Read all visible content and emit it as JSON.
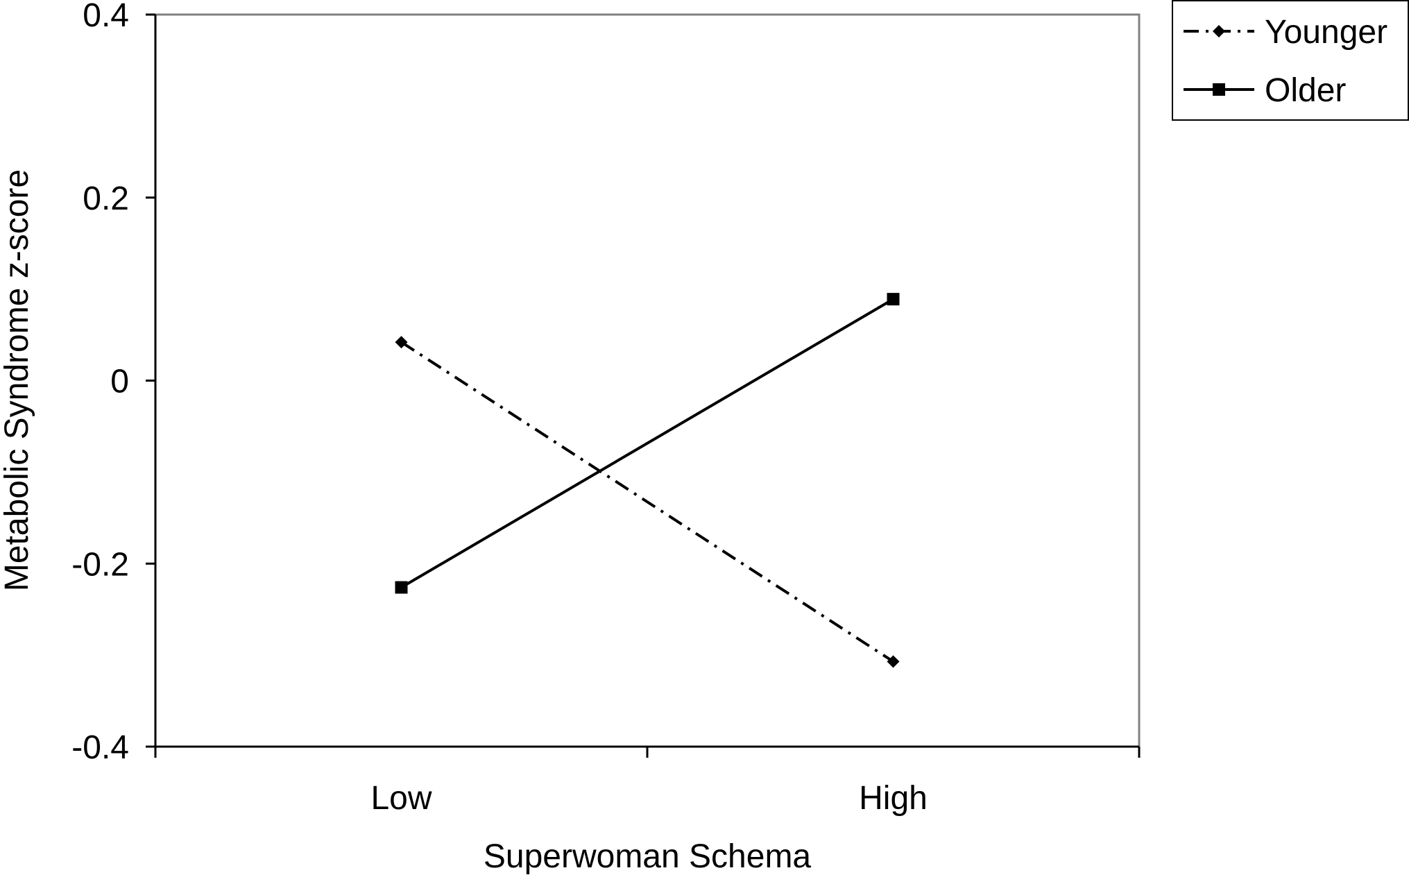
{
  "chart_data": {
    "type": "line",
    "title": "",
    "xlabel": "Superwoman Schema",
    "ylabel": "Metabolic Syndrome z-score",
    "categories": [
      "Low",
      "High"
    ],
    "ylim": [
      -0.4,
      0.4
    ],
    "yticks": [
      0.4,
      0.2,
      0,
      -0.2,
      -0.4
    ],
    "ytick_labels": [
      "0.4",
      "0.2",
      "0",
      "-0.2",
      "-0.4"
    ],
    "grid": false,
    "legend_position": "top-right",
    "series": [
      {
        "name": "Younger",
        "values": [
          0.042,
          -0.307
        ],
        "line_style": "dash-dot",
        "marker": "diamond",
        "color": "#000000"
      },
      {
        "name": "Older",
        "values": [
          -0.226,
          0.089
        ],
        "line_style": "solid",
        "marker": "square",
        "color": "#000000"
      }
    ]
  }
}
